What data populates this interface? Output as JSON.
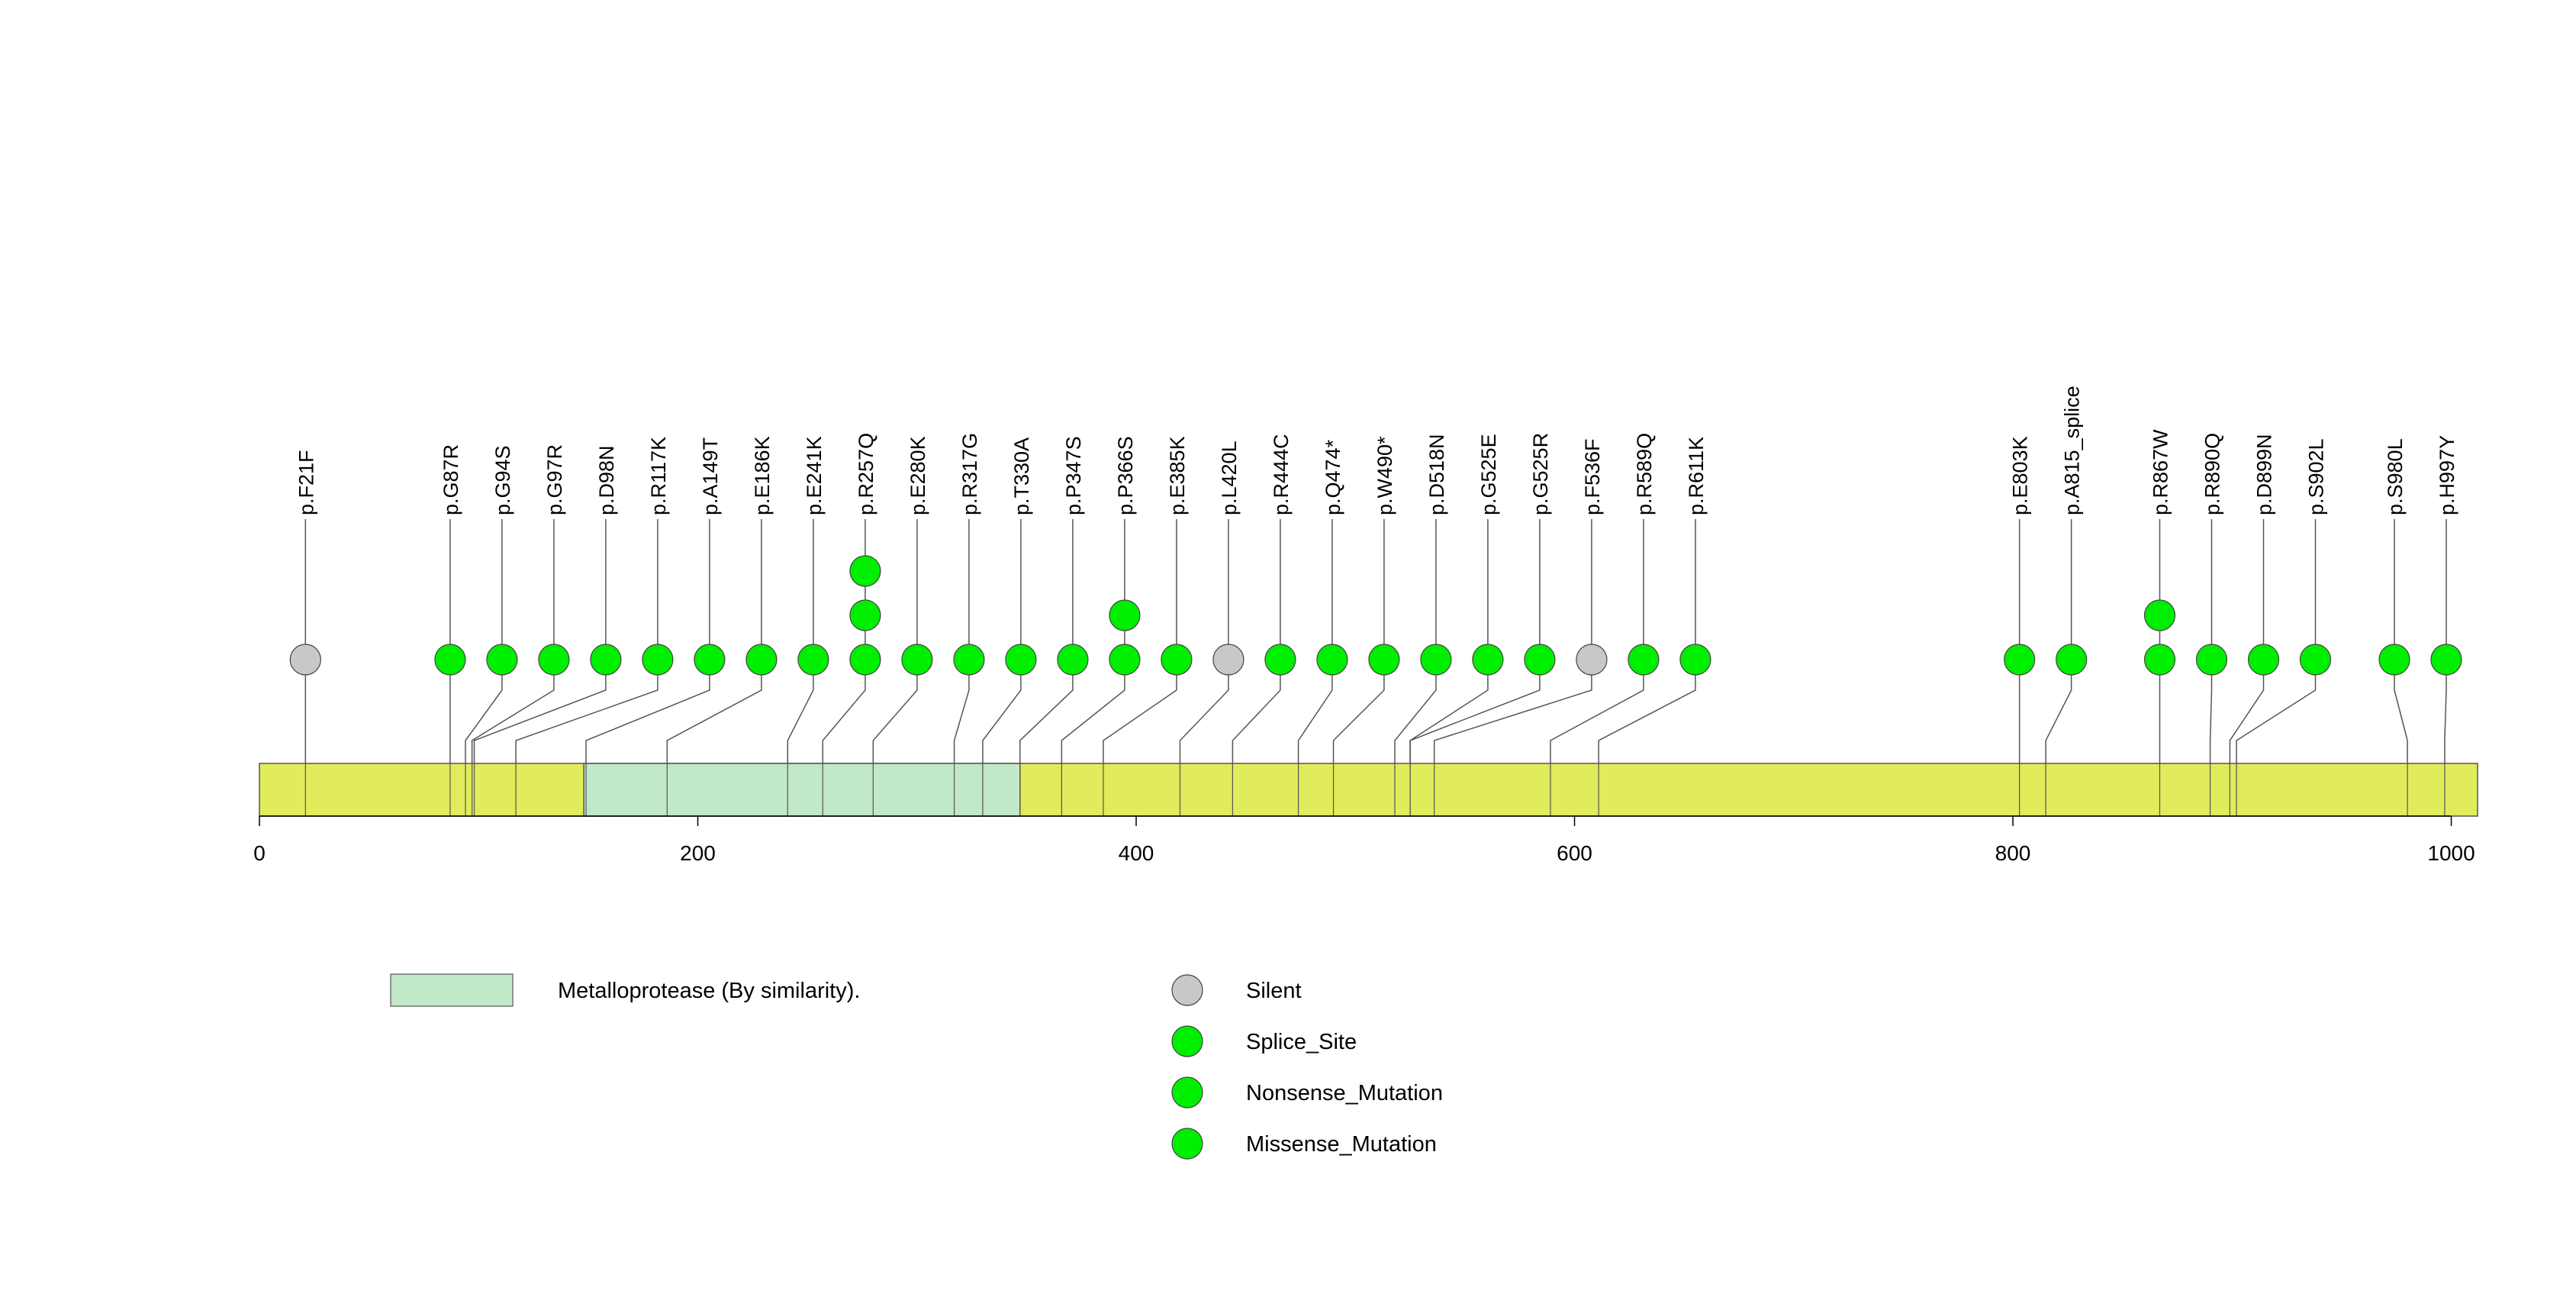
{
  "chart_data": {
    "type": "lollipop",
    "x_axis": {
      "min": 0,
      "max": 1012,
      "ticks": [
        0,
        200,
        400,
        600,
        800,
        1000
      ],
      "tick_labels": [
        "0",
        "200",
        "400",
        "600",
        "800",
        "1000"
      ]
    },
    "protein_length": 1012,
    "domains": [
      {
        "name": "Metalloprotease (By similarity).",
        "start": 148,
        "end": 347,
        "color": "#c1e8c8"
      }
    ],
    "backbone_color": "#e0ec5c",
    "mutation_types": [
      {
        "name": "Silent",
        "color": "#c8c8c8"
      },
      {
        "name": "Splice_Site",
        "color": "#00ee00"
      },
      {
        "name": "Nonsense_Mutation",
        "color": "#00ee00"
      },
      {
        "name": "Missense_Mutation",
        "color": "#00ee00"
      }
    ],
    "mutations": [
      {
        "label": "p.F21F",
        "position": 21,
        "count": 1,
        "type": "Silent"
      },
      {
        "label": "p.G87R",
        "position": 87,
        "count": 1,
        "type": "Missense_Mutation"
      },
      {
        "label": "p.G94S",
        "position": 94,
        "count": 1,
        "type": "Missense_Mutation"
      },
      {
        "label": "p.G97R",
        "position": 97,
        "count": 1,
        "type": "Missense_Mutation"
      },
      {
        "label": "p.D98N",
        "position": 98,
        "count": 1,
        "type": "Missense_Mutation"
      },
      {
        "label": "p.R117K",
        "position": 117,
        "count": 1,
        "type": "Missense_Mutation"
      },
      {
        "label": "p.A149T",
        "position": 149,
        "count": 1,
        "type": "Missense_Mutation"
      },
      {
        "label": "p.E186K",
        "position": 186,
        "count": 1,
        "type": "Missense_Mutation"
      },
      {
        "label": "p.E241K",
        "position": 241,
        "count": 1,
        "type": "Missense_Mutation"
      },
      {
        "label": "p.R257Q",
        "position": 257,
        "count": 3,
        "type": "Missense_Mutation"
      },
      {
        "label": "p.E280K",
        "position": 280,
        "count": 1,
        "type": "Missense_Mutation"
      },
      {
        "label": "p.R317G",
        "position": 317,
        "count": 1,
        "type": "Missense_Mutation"
      },
      {
        "label": "p.T330A",
        "position": 330,
        "count": 1,
        "type": "Missense_Mutation"
      },
      {
        "label": "p.P347S",
        "position": 347,
        "count": 1,
        "type": "Missense_Mutation"
      },
      {
        "label": "p.P366S",
        "position": 366,
        "count": 2,
        "type": "Missense_Mutation"
      },
      {
        "label": "p.E385K",
        "position": 385,
        "count": 1,
        "type": "Missense_Mutation"
      },
      {
        "label": "p.L420L",
        "position": 420,
        "count": 1,
        "type": "Silent"
      },
      {
        "label": "p.R444C",
        "position": 444,
        "count": 1,
        "type": "Missense_Mutation"
      },
      {
        "label": "p.Q474*",
        "position": 474,
        "count": 1,
        "type": "Nonsense_Mutation"
      },
      {
        "label": "p.W490*",
        "position": 490,
        "count": 1,
        "type": "Nonsense_Mutation"
      },
      {
        "label": "p.D518N",
        "position": 518,
        "count": 1,
        "type": "Missense_Mutation"
      },
      {
        "label": "p.G525E",
        "position": 525,
        "count": 1,
        "type": "Missense_Mutation"
      },
      {
        "label": "p.G525R",
        "position": 525,
        "count": 1,
        "type": "Missense_Mutation"
      },
      {
        "label": "p.F536F",
        "position": 536,
        "count": 1,
        "type": "Silent"
      },
      {
        "label": "p.R589Q",
        "position": 589,
        "count": 1,
        "type": "Missense_Mutation"
      },
      {
        "label": "p.R611K",
        "position": 611,
        "count": 1,
        "type": "Missense_Mutation"
      },
      {
        "label": "p.E803K",
        "position": 803,
        "count": 1,
        "type": "Missense_Mutation"
      },
      {
        "label": "p.A815_splice",
        "position": 815,
        "count": 1,
        "type": "Splice_Site"
      },
      {
        "label": "p.R867W",
        "position": 867,
        "count": 2,
        "type": "Missense_Mutation"
      },
      {
        "label": "p.R890Q",
        "position": 890,
        "count": 1,
        "type": "Missense_Mutation"
      },
      {
        "label": "p.D899N",
        "position": 899,
        "count": 1,
        "type": "Missense_Mutation"
      },
      {
        "label": "p.S902L",
        "position": 902,
        "count": 1,
        "type": "Missense_Mutation"
      },
      {
        "label": "p.S980L",
        "position": 980,
        "count": 1,
        "type": "Missense_Mutation"
      },
      {
        "label": "p.H997Y",
        "position": 997,
        "count": 1,
        "type": "Missense_Mutation"
      }
    ]
  }
}
